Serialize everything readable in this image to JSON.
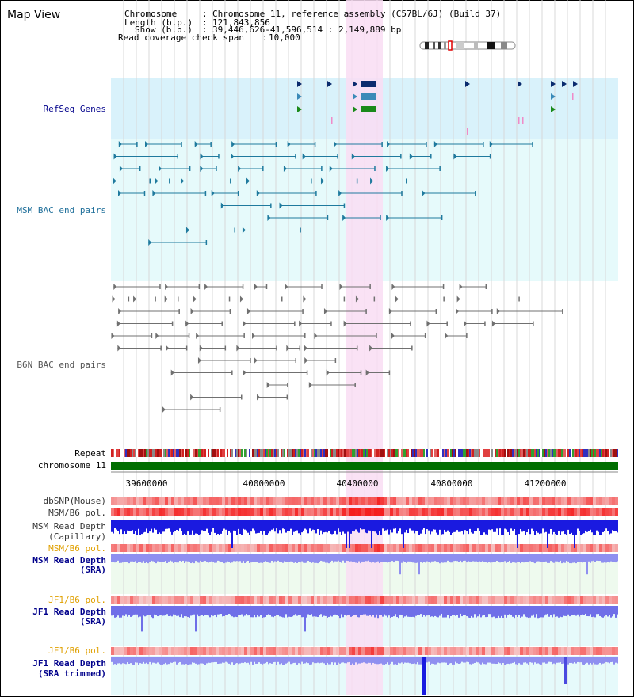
{
  "title": "Map View",
  "info": {
    "chromosome_key": "Chromosome",
    "chromosome_val": "Chromosome 11, reference assembly (C57BL/6J) (Build 37)",
    "length_key": "Length (b.p.)",
    "length_val": "121,843,856",
    "show_key": "Show (b.p.)",
    "show_val": "39,446,626-41,596,514 : 2,149,889 bp",
    "coverage_key": "Read coverage check span",
    "coverage_val": "10,000"
  },
  "tracks": {
    "refseq": "RefSeq Genes",
    "msm_bac": "MSM BAC end pairs",
    "b6n_bac": "B6N BAC end pairs",
    "repeat": "Repeat",
    "chromosome": "chromosome 11",
    "dbsnp": "dbSNP(Mouse)",
    "msm_b6_pol_1": "MSM/B6 pol.",
    "msm_depth_cap_1": "MSM Read Depth",
    "msm_depth_cap_2": "(Capillary)",
    "msm_b6_pol_2": "MSM/B6 pol.",
    "msm_depth_sra_1": "MSM Read Depth",
    "msm_depth_sra_2": "(SRA)",
    "jf1_b6_pol_1": "JF1/B6 pol.",
    "jf1_depth_sra_1": "JF1 Read Depth",
    "jf1_depth_sra_2": "(SRA)",
    "jf1_b6_pol_2": "JF1/B6 pol.",
    "jf1_depth_trim_1": "JF1 Read Depth",
    "jf1_depth_trim_2": "(SRA trimmed)"
  },
  "axis_ticks": [
    "39600000",
    "40000000",
    "40400000",
    "40800000",
    "41200000"
  ],
  "colors": {
    "refseq_bg": "#d9f2fb",
    "bac_bg": "#e6fafb",
    "highlight": "#f9ddf3",
    "msm_bac": "#1f7a9e",
    "b6n_bac": "#707070",
    "chromosome": "#006e00",
    "depth_blue": "#2b2bd6",
    "label_blue": "#00008b",
    "label_teal": "#1f6f9a",
    "label_orange": "#e0a000"
  }
}
